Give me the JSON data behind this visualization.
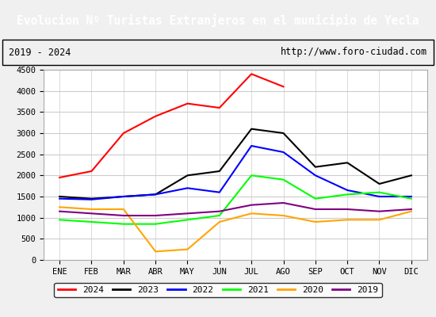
{
  "title": "Evolucion Nº Turistas Extranjeros en el municipio de Yecla",
  "subtitle_left": "2019 - 2024",
  "subtitle_right": "http://www.foro-ciudad.com",
  "title_bg": "#4472c4",
  "title_fg": "white",
  "months": [
    "ENE",
    "FEB",
    "MAR",
    "ABR",
    "MAY",
    "JUN",
    "JUL",
    "AGO",
    "SEP",
    "OCT",
    "NOV",
    "DIC"
  ],
  "ylim": [
    0,
    4500
  ],
  "yticks": [
    0,
    500,
    1000,
    1500,
    2000,
    2500,
    3000,
    3500,
    4000,
    4500
  ],
  "series": {
    "2024": {
      "color": "red",
      "data": [
        1950,
        2100,
        3000,
        3400,
        3700,
        3600,
        4400,
        4100,
        null,
        null,
        null,
        null
      ]
    },
    "2023": {
      "color": "black",
      "data": [
        1500,
        1450,
        1500,
        1550,
        2000,
        2100,
        3100,
        3000,
        2200,
        2300,
        1800,
        2000
      ]
    },
    "2022": {
      "color": "blue",
      "data": [
        1450,
        1430,
        1500,
        1550,
        1700,
        1600,
        2700,
        2550,
        2000,
        1650,
        1500,
        1500
      ]
    },
    "2021": {
      "color": "lime",
      "data": [
        950,
        900,
        850,
        850,
        950,
        1050,
        2000,
        1900,
        1450,
        1550,
        1600,
        1450
      ]
    },
    "2020": {
      "color": "orange",
      "data": [
        1250,
        1200,
        1200,
        200,
        250,
        900,
        1100,
        1050,
        900,
        950,
        950,
        1150
      ]
    },
    "2019": {
      "color": "purple",
      "data": [
        1150,
        1100,
        1050,
        1050,
        1100,
        1150,
        1300,
        1350,
        1200,
        1200,
        1150,
        1200
      ]
    }
  },
  "legend_order": [
    "2024",
    "2023",
    "2022",
    "2021",
    "2020",
    "2019"
  ],
  "bg_color": "#f0f0f0",
  "plot_bg": "white",
  "grid_color": "#cccccc"
}
